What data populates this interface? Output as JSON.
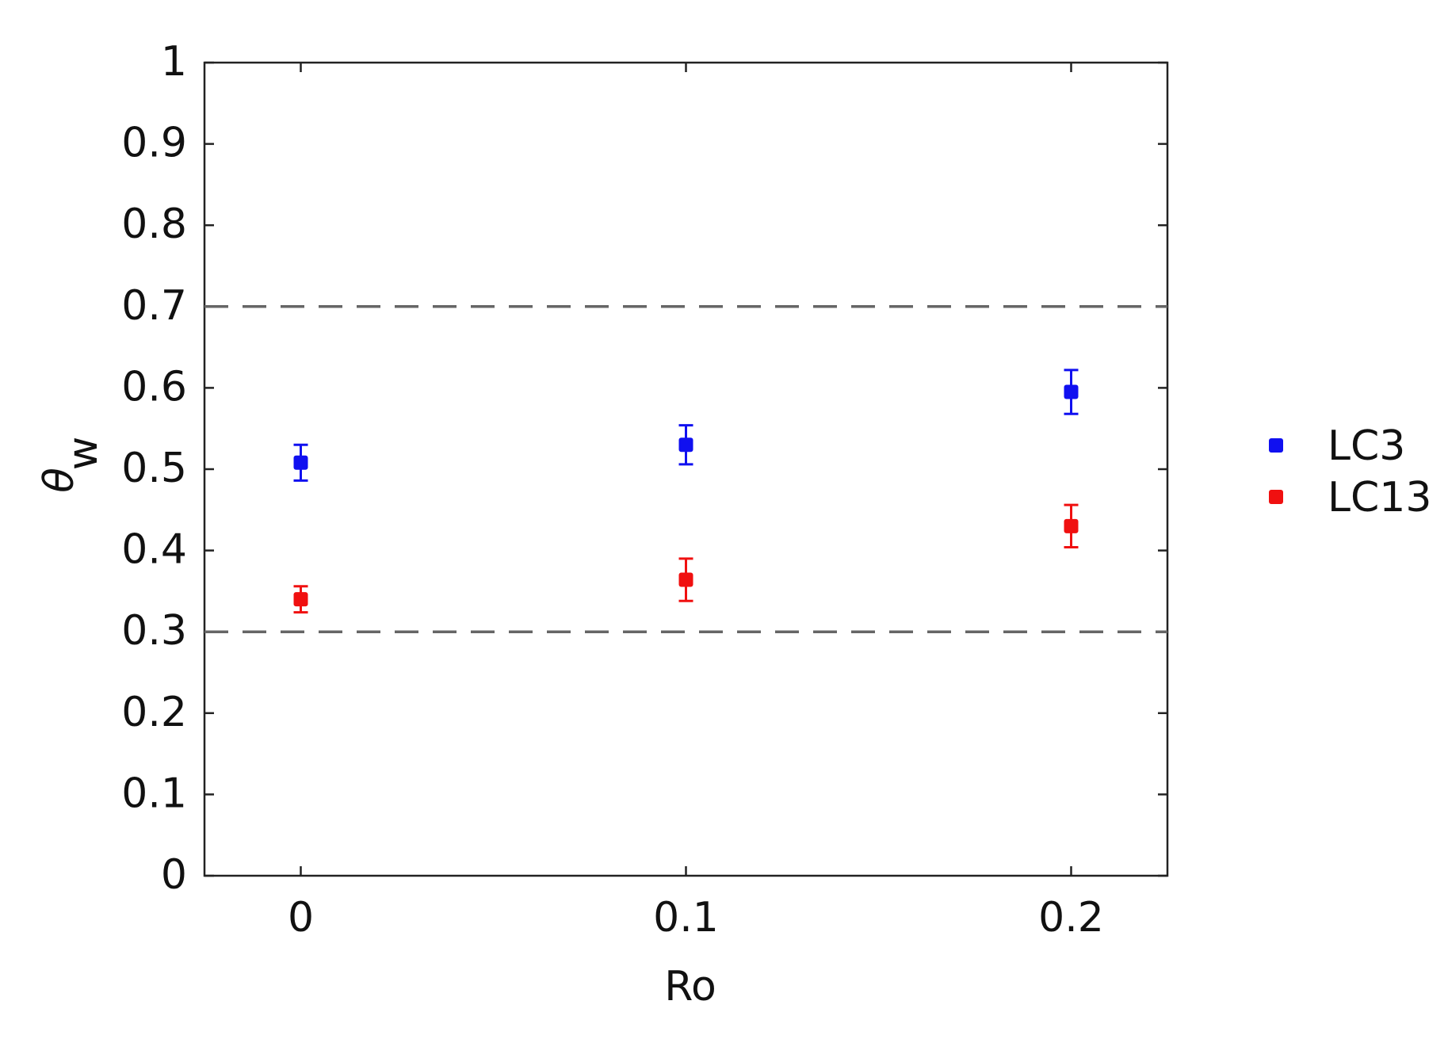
{
  "chart_data": {
    "type": "scatter",
    "ylabel": "θ",
    "ylabel_sub": "w",
    "xlabel": "Ro",
    "x": [
      0,
      0.1,
      0.2
    ],
    "xlim": [
      -0.025,
      0.225
    ],
    "xticks": [
      0,
      0.1,
      0.2
    ],
    "ylim": [
      0,
      1
    ],
    "yticks": [
      0,
      0.1,
      0.2,
      0.3,
      0.4,
      0.5,
      0.6,
      0.7,
      0.8,
      0.9,
      1
    ],
    "hlines": [
      0.3,
      0.7
    ],
    "hline_color": "#666666",
    "legend": "right",
    "series": [
      {
        "name": "LC3",
        "color": "#1010f0",
        "values": [
          0.508,
          0.53,
          0.595
        ],
        "errors": [
          0.022,
          0.024,
          0.027
        ]
      },
      {
        "name": "LC13",
        "color": "#f01010",
        "values": [
          0.34,
          0.364,
          0.43
        ],
        "errors": [
          0.016,
          0.026,
          0.026
        ]
      }
    ]
  }
}
